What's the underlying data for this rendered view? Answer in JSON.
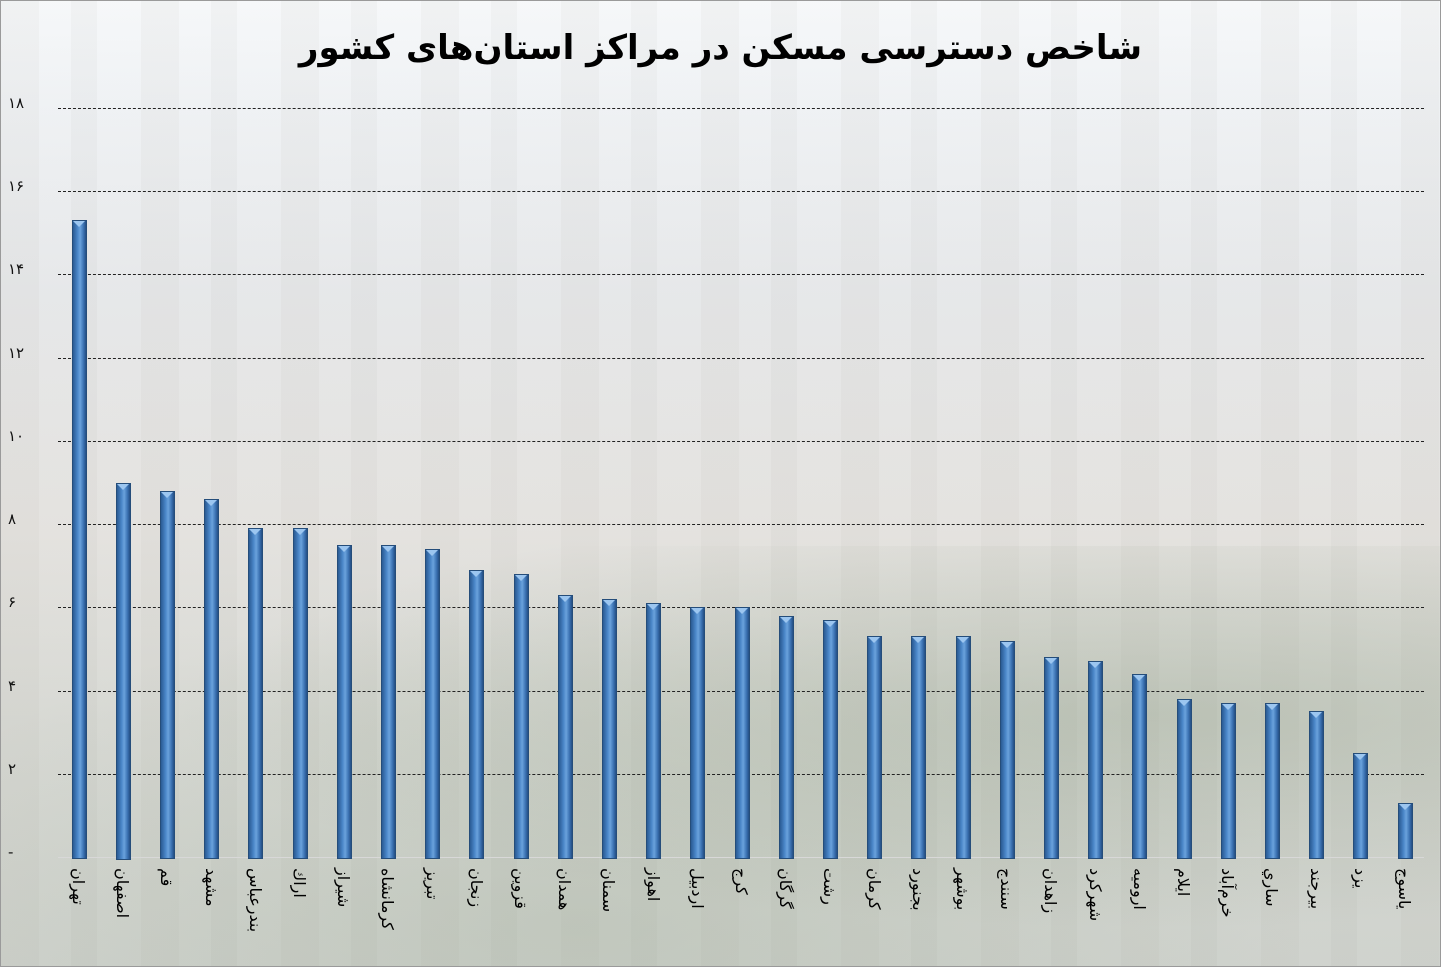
{
  "chart_data": {
    "type": "bar",
    "title": "شاخص دسترسی مسکن در مراکز استان‌های کشور",
    "xlabel": "",
    "ylabel": "",
    "ylim": [
      0,
      18
    ],
    "yticks": [
      0,
      2,
      4,
      6,
      8,
      10,
      12,
      14,
      16,
      18
    ],
    "ytick_labels": [
      "-",
      "۲",
      "۴",
      "۶",
      "۸",
      "۱۰",
      "۱۲",
      "۱۴",
      "۱۶",
      "۱۸"
    ],
    "grid": true,
    "legend": null,
    "bar_color": "#4a86c8",
    "categories": [
      "تهران",
      "اصفهان",
      "قم",
      "مشهد",
      "بندرعباس",
      "اراك",
      "شيراز",
      "كرمانشاه",
      "تبريز",
      "زنجان",
      "قزوين",
      "همدان",
      "سمنان",
      "اهواز",
      "اردبيل",
      "كرج",
      "گرگان",
      "رشت",
      "كرمان",
      "بجنورد",
      "بوشهر",
      "سنندج",
      "زاهدان",
      "شهركرد",
      "اروميه",
      "ايلام",
      "خرم‌آباد",
      "ساري",
      "بيرجند",
      "يزد",
      "ياسوج"
    ],
    "values": [
      15.3,
      9.0,
      8.8,
      8.6,
      7.9,
      7.9,
      7.5,
      7.5,
      7.4,
      6.9,
      6.8,
      6.3,
      6.2,
      6.1,
      6.0,
      6.0,
      5.8,
      5.7,
      5.3,
      5.3,
      5.3,
      5.2,
      4.8,
      4.7,
      4.4,
      3.8,
      3.7,
      3.7,
      3.5,
      2.5,
      1.3
    ]
  }
}
